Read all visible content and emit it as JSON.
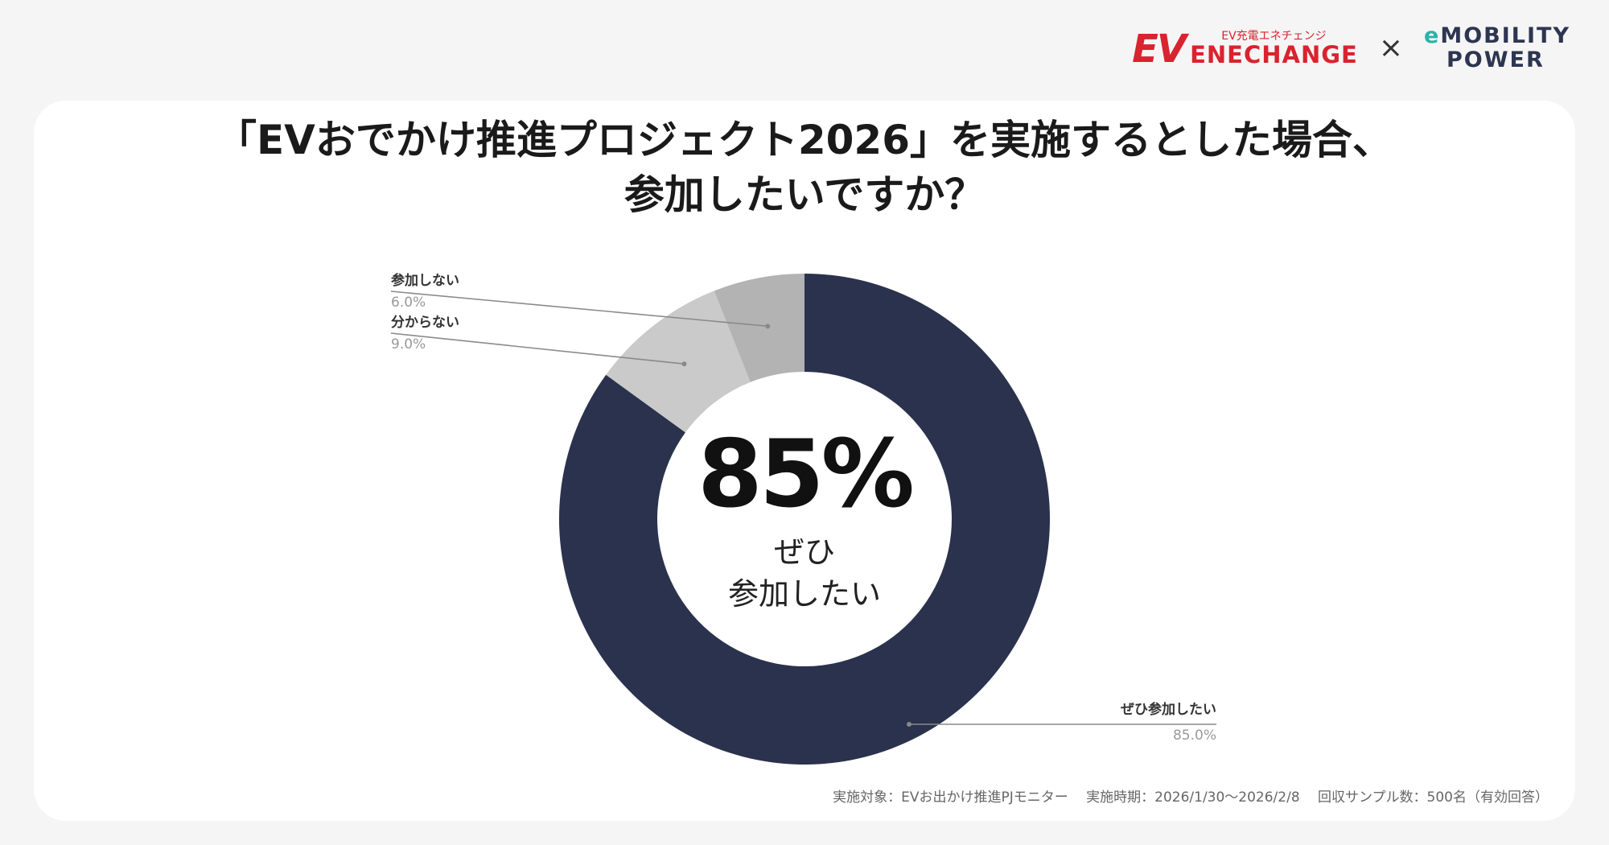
{
  "logos": {
    "enechange_mark": "EV",
    "enechange_sub": "EV充電エネチェンジ",
    "enechange_name": "ENECHANGE",
    "times": "×",
    "mobility_line1": "MOBILITY",
    "mobility_e": "e",
    "mobility_line2": "POWER"
  },
  "title_line1": "「EVおでかけ推進プロジェクト2026」を実施するとした場合、",
  "title_line2": "参加したいですか？",
  "center": {
    "value": "85%",
    "label_line1": "ぜひ",
    "label_line2": "参加したい"
  },
  "footnote": "実施対象：EVお出かけ推進PJモニター　 実施時期：2026/1/30〜2026/2/8　 回収サンプル数：500名（有効回答）",
  "chart_data": {
    "type": "pie",
    "donut": true,
    "slices": [
      {
        "label": "ぜひ参加したい",
        "value": 85.0,
        "value_label": "85.0%",
        "color": "#2a324d"
      },
      {
        "label": "分からない",
        "value": 9.0,
        "value_label": "9.0%",
        "color": "#cacaca"
      },
      {
        "label": "参加しない",
        "value": 6.0,
        "value_label": "6.0%",
        "color": "#b3b3b3"
      }
    ]
  }
}
